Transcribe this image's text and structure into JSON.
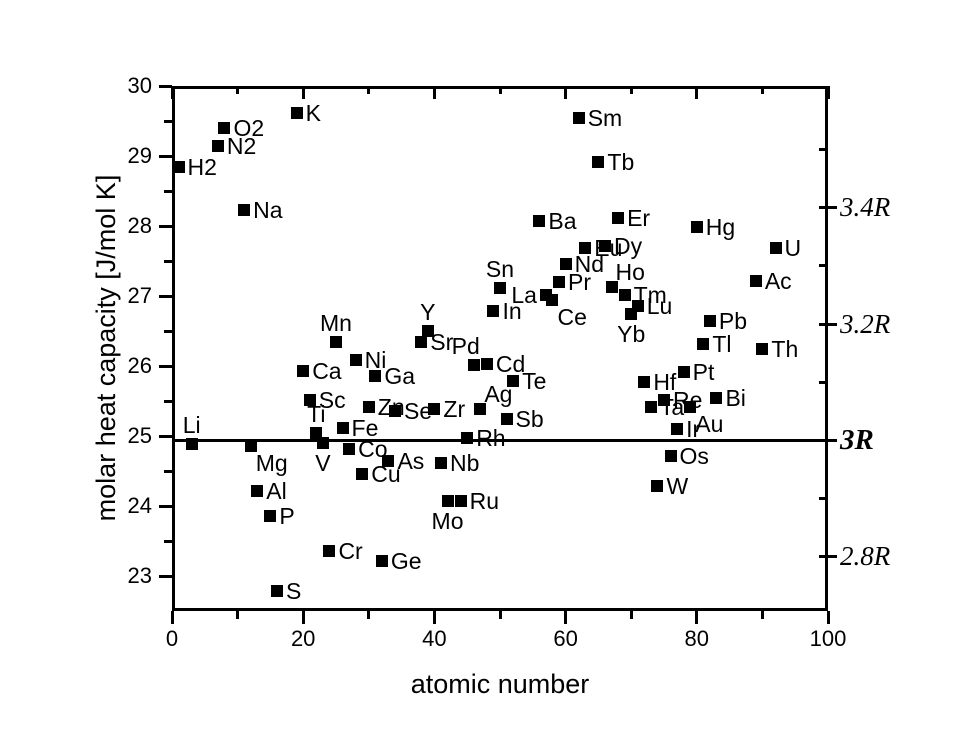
{
  "chart_data": {
    "type": "scatter",
    "title": "",
    "xlabel": "atomic number",
    "ylabel": "molar heat capacity  [J/mol K]",
    "xlim": [
      0,
      100
    ],
    "ylim": [
      22.5,
      30
    ],
    "grid": false,
    "background": "#ffffff",
    "axis_color": "#000000",
    "x_major_ticks": [
      0,
      20,
      40,
      60,
      80,
      100
    ],
    "x_minor_ticks": [
      10,
      30,
      50,
      70,
      90
    ],
    "y_major_ticks": [
      23,
      24,
      25,
      26,
      27,
      28,
      29,
      30
    ],
    "y_minor_ticks": [
      23.5,
      24.5,
      25.5,
      26.5,
      27.5,
      28.5,
      29.5
    ],
    "hline": {
      "value": 24.94,
      "label": "3R"
    },
    "right_axis": {
      "gas_constant_R": 8.314,
      "tick_values": [
        23.28,
        24.11,
        24.94,
        25.77,
        26.6,
        27.44,
        28.27,
        29.1
      ],
      "labels": [
        {
          "text": "3.4R",
          "value": 28.27,
          "bold": false
        },
        {
          "text": "3.2R",
          "value": 26.6,
          "bold": false
        },
        {
          "text": "3R",
          "value": 24.94,
          "bold": true
        },
        {
          "text": "2.8R",
          "value": 23.28,
          "bold": false
        }
      ]
    },
    "marker": {
      "shape": "square",
      "color": "#000000",
      "size": 12
    },
    "points": [
      {
        "label": "H2",
        "x": 1,
        "y": 28.85,
        "pos": "right"
      },
      {
        "label": "Li",
        "x": 3,
        "y": 24.88,
        "pos": "above"
      },
      {
        "label": "N2",
        "x": 7,
        "y": 29.15,
        "pos": "right"
      },
      {
        "label": "O2",
        "x": 8,
        "y": 29.4,
        "pos": "right"
      },
      {
        "label": "Na",
        "x": 11,
        "y": 28.23,
        "pos": "right"
      },
      {
        "label": "Mg",
        "x": 12,
        "y": 24.86,
        "pos": "below-right"
      },
      {
        "label": "Al",
        "x": 13,
        "y": 24.21,
        "pos": "right"
      },
      {
        "label": "P",
        "x": 15,
        "y": 23.86,
        "pos": "right"
      },
      {
        "label": "S",
        "x": 16,
        "y": 22.79,
        "pos": "right"
      },
      {
        "label": "K",
        "x": 19,
        "y": 29.61,
        "pos": "right"
      },
      {
        "label": "Ca",
        "x": 20,
        "y": 25.93,
        "pos": "right"
      },
      {
        "label": "Sc",
        "x": 21,
        "y": 25.52,
        "pos": "right"
      },
      {
        "label": "Ti",
        "x": 22,
        "y": 25.04,
        "pos": "above"
      },
      {
        "label": "V",
        "x": 23,
        "y": 24.9,
        "pos": "below"
      },
      {
        "label": "Cr",
        "x": 24,
        "y": 23.36,
        "pos": "right"
      },
      {
        "label": "Mn",
        "x": 25,
        "y": 26.34,
        "pos": "above"
      },
      {
        "label": "Fe",
        "x": 26,
        "y": 25.12,
        "pos": "right"
      },
      {
        "label": "Co",
        "x": 27,
        "y": 24.82,
        "pos": "right"
      },
      {
        "label": "Ni",
        "x": 28,
        "y": 26.08,
        "pos": "right"
      },
      {
        "label": "Cu",
        "x": 29,
        "y": 24.46,
        "pos": "right"
      },
      {
        "label": "Zn",
        "x": 30,
        "y": 25.41,
        "pos": "right"
      },
      {
        "label": "Ga",
        "x": 31,
        "y": 25.86,
        "pos": "right"
      },
      {
        "label": "Ge",
        "x": 32,
        "y": 23.22,
        "pos": "right"
      },
      {
        "label": "As",
        "x": 33,
        "y": 24.64,
        "pos": "right"
      },
      {
        "label": "Se",
        "x": 34,
        "y": 25.36,
        "pos": "right"
      },
      {
        "label": "Sr",
        "x": 38,
        "y": 26.35,
        "pos": "right"
      },
      {
        "label": "Y",
        "x": 39,
        "y": 26.5,
        "pos": "above"
      },
      {
        "label": "Zr",
        "x": 40,
        "y": 25.38,
        "pos": "right"
      },
      {
        "label": "Nb",
        "x": 41,
        "y": 24.61,
        "pos": "right"
      },
      {
        "label": "Mo",
        "x": 42,
        "y": 24.07,
        "pos": "below"
      },
      {
        "label": "Ru",
        "x": 44,
        "y": 24.07,
        "pos": "right"
      },
      {
        "label": "Rh",
        "x": 45,
        "y": 24.97,
        "pos": "right"
      },
      {
        "label": "Pd",
        "x": 46,
        "y": 26.01,
        "pos": "above-left"
      },
      {
        "label": "Ag",
        "x": 47,
        "y": 25.39,
        "pos": "above-right"
      },
      {
        "label": "Cd",
        "x": 48,
        "y": 26.03,
        "pos": "right"
      },
      {
        "label": "In",
        "x": 49,
        "y": 26.78,
        "pos": "right"
      },
      {
        "label": "Sn",
        "x": 50,
        "y": 27.12,
        "pos": "above"
      },
      {
        "label": "Sb",
        "x": 51,
        "y": 25.25,
        "pos": "right"
      },
      {
        "label": "Te",
        "x": 52,
        "y": 25.78,
        "pos": "right"
      },
      {
        "label": "Ba",
        "x": 56,
        "y": 28.07,
        "pos": "right"
      },
      {
        "label": "La",
        "x": 57,
        "y": 27.02,
        "pos": "left"
      },
      {
        "label": "Ce",
        "x": 58,
        "y": 26.95,
        "pos": "below-right"
      },
      {
        "label": "Pr",
        "x": 59,
        "y": 27.2,
        "pos": "right"
      },
      {
        "label": "Nd",
        "x": 60,
        "y": 27.46,
        "pos": "right"
      },
      {
        "label": "Sm",
        "x": 62,
        "y": 29.54,
        "pos": "right"
      },
      {
        "label": "Eu",
        "x": 63,
        "y": 27.68,
        "pos": "right"
      },
      {
        "label": "Tb",
        "x": 65,
        "y": 28.91,
        "pos": "right"
      },
      {
        "label": "Dy",
        "x": 66,
        "y": 27.72,
        "pos": "right"
      },
      {
        "label": "Ho",
        "x": 67,
        "y": 27.13,
        "pos": "above-right"
      },
      {
        "label": "Er",
        "x": 68,
        "y": 28.12,
        "pos": "right"
      },
      {
        "label": "Tm",
        "x": 69,
        "y": 27.01,
        "pos": "right"
      },
      {
        "label": "Yb",
        "x": 70,
        "y": 26.74,
        "pos": "below"
      },
      {
        "label": "Lu",
        "x": 71,
        "y": 26.86,
        "pos": "right"
      },
      {
        "label": "Hf",
        "x": 72,
        "y": 25.77,
        "pos": "right"
      },
      {
        "label": "Ta",
        "x": 73,
        "y": 25.41,
        "pos": "right"
      },
      {
        "label": "W",
        "x": 74,
        "y": 24.29,
        "pos": "right"
      },
      {
        "label": "Re",
        "x": 75,
        "y": 25.51,
        "pos": "right"
      },
      {
        "label": "Os",
        "x": 76,
        "y": 24.71,
        "pos": "right"
      },
      {
        "label": "Ir",
        "x": 77,
        "y": 25.1,
        "pos": "right"
      },
      {
        "label": "Pt",
        "x": 78,
        "y": 25.91,
        "pos": "right"
      },
      {
        "label": "Au",
        "x": 79,
        "y": 25.42,
        "pos": "below-right"
      },
      {
        "label": "Hg",
        "x": 80,
        "y": 27.98,
        "pos": "right"
      },
      {
        "label": "Tl",
        "x": 81,
        "y": 26.32,
        "pos": "right"
      },
      {
        "label": "Pb",
        "x": 82,
        "y": 26.64,
        "pos": "right"
      },
      {
        "label": "Bi",
        "x": 83,
        "y": 25.54,
        "pos": "right"
      },
      {
        "label": "Ac",
        "x": 89,
        "y": 27.22,
        "pos": "right"
      },
      {
        "label": "Th",
        "x": 90,
        "y": 26.24,
        "pos": "right"
      },
      {
        "label": "U",
        "x": 92,
        "y": 27.68,
        "pos": "right"
      }
    ]
  }
}
